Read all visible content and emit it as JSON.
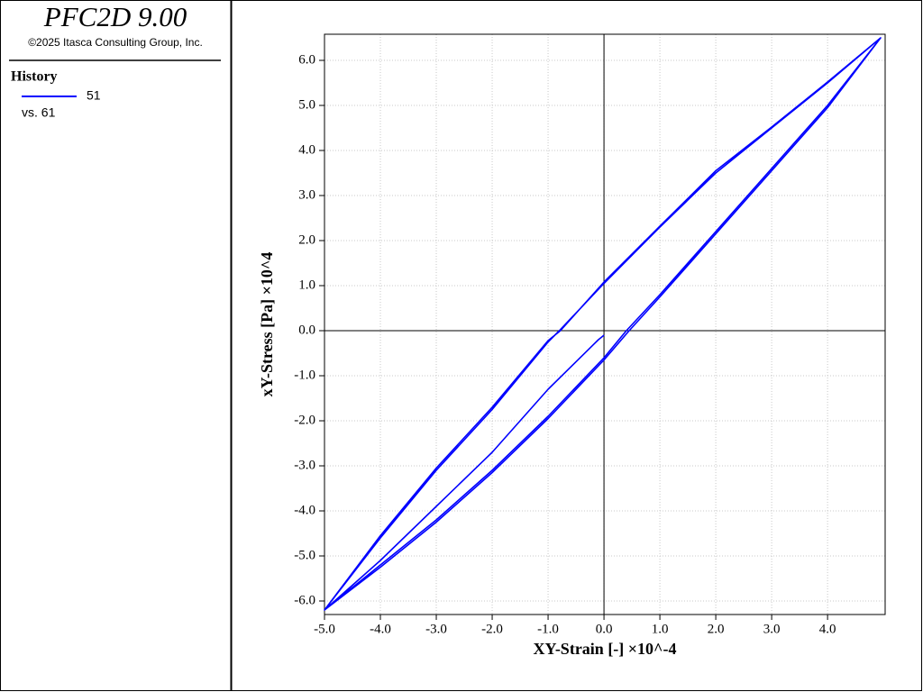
{
  "chart_data": {
    "type": "line",
    "title": "PFC2D 9.00",
    "subtitle": "©2025 Itasca Consulting Group, Inc.",
    "legend_title": "History",
    "legend_note": "vs. 61",
    "x_label": "XY-Strain [-] ×10^-4",
    "y_label": "xY-Stress [Pa] ×10^4",
    "grid": true,
    "xlim": [
      -5.0,
      5.03
    ],
    "ylim": [
      -6.3,
      6.58
    ],
    "xticks": [
      {
        "value": -5,
        "label": "-5.0"
      },
      {
        "value": -4,
        "label": "-4.0"
      },
      {
        "value": -3,
        "label": "-3.0"
      },
      {
        "value": -2,
        "label": "-2.0"
      },
      {
        "value": -1,
        "label": "-1.0"
      },
      {
        "value": 0,
        "label": "0.0"
      },
      {
        "value": 1,
        "label": "1.0"
      },
      {
        "value": 2,
        "label": "2.0"
      },
      {
        "value": 3,
        "label": "3.0"
      },
      {
        "value": 4,
        "label": "4.0"
      }
    ],
    "yticks": [
      {
        "value": -6,
        "label": "-6.0"
      },
      {
        "value": -5,
        "label": "-5.0"
      },
      {
        "value": -4,
        "label": "-4.0"
      },
      {
        "value": -3,
        "label": "-3.0"
      },
      {
        "value": -2,
        "label": "-2.0"
      },
      {
        "value": -1,
        "label": "-1.0"
      },
      {
        "value": 0,
        "label": "0.0"
      },
      {
        "value": 1,
        "label": "1.0"
      },
      {
        "value": 2,
        "label": "2.0"
      },
      {
        "value": 3,
        "label": "3.0"
      },
      {
        "value": 4,
        "label": "4.0"
      },
      {
        "value": 5,
        "label": "5.0"
      },
      {
        "value": 6,
        "label": "6.0"
      }
    ],
    "series": [
      {
        "name": "51",
        "color": "#0000ff",
        "x": [
          0,
          -0.1,
          -1,
          -2,
          -3,
          -4,
          -5,
          -4,
          -3,
          -2,
          -1,
          -0.8,
          0,
          1,
          2,
          3,
          4,
          4.95,
          4,
          3,
          2,
          1,
          0.4,
          0,
          -1,
          -2,
          -3,
          -4,
          -5,
          -4,
          -3,
          -2,
          -1,
          -0.78,
          0,
          1,
          2,
          3,
          4,
          4.95,
          4,
          3,
          2,
          1,
          0.45,
          0,
          -1,
          -2,
          -3,
          -4,
          -5
        ],
        "values": [
          -0.1,
          -0.2,
          -1.3,
          -2.7,
          -3.9,
          -5.1,
          -6.2,
          -4.6,
          -3.1,
          -1.75,
          -0.25,
          0,
          1.05,
          2.3,
          3.5,
          4.5,
          5.5,
          6.5,
          5.0,
          3.6,
          2.2,
          0.8,
          0,
          -0.6,
          -1.9,
          -3.1,
          -4.2,
          -5.2,
          -6.2,
          -4.55,
          -3.05,
          -1.7,
          -0.22,
          0,
          1.08,
          2.32,
          3.55,
          4.52,
          5.52,
          6.5,
          4.95,
          3.55,
          2.15,
          0.75,
          0,
          -0.65,
          -1.95,
          -3.15,
          -4.25,
          -5.25,
          -6.2
        ]
      }
    ]
  }
}
